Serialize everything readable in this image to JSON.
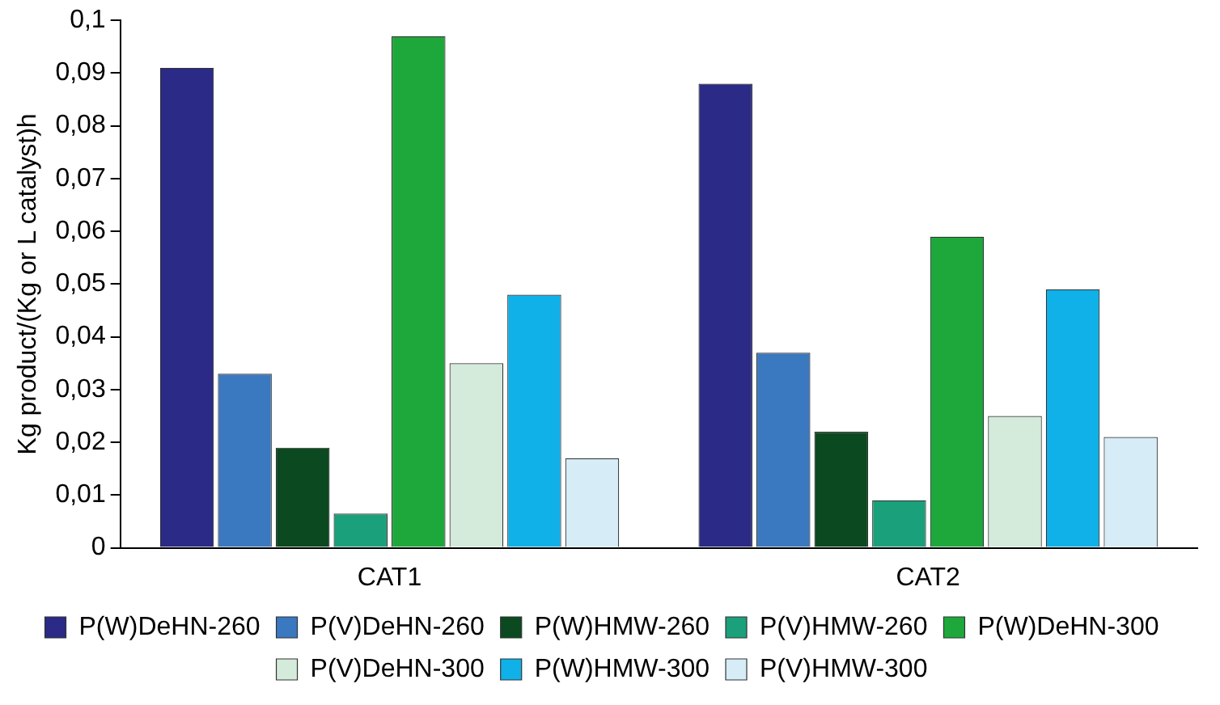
{
  "chart_data": {
    "type": "bar",
    "ylabel": "Kg product/(Kg or L catalyst)h",
    "categories": [
      "CAT1",
      "CAT2"
    ],
    "series": [
      {
        "name": "P(W)DeHN-260",
        "color": "#2b2a86",
        "values": [
          0.091,
          0.088
        ]
      },
      {
        "name": "P(V)DeHN-260",
        "color": "#3a78c0",
        "values": [
          0.033,
          0.037
        ]
      },
      {
        "name": "P(W)HMW-260",
        "color": "#0b4a20",
        "values": [
          0.019,
          0.022
        ]
      },
      {
        "name": "P(V)HMW-260",
        "color": "#1aa07a",
        "values": [
          0.0065,
          0.009
        ]
      },
      {
        "name": "P(W)DeHN-300",
        "color": "#1ea83c",
        "values": [
          0.097,
          0.059
        ]
      },
      {
        "name": "P(V)DeHN-300",
        "color": "#d4eadb",
        "values": [
          0.035,
          0.025
        ]
      },
      {
        "name": "P(W)HMW-300",
        "color": "#10b0e8",
        "values": [
          0.048,
          0.049
        ]
      },
      {
        "name": "P(V)HMW-300",
        "color": "#d6ecf6",
        "values": [
          0.017,
          0.021
        ]
      }
    ],
    "ylim": [
      0,
      0.1
    ],
    "yticks": [
      0,
      {
        "value": 0.01,
        "label": "0,01"
      },
      {
        "value": 0.02,
        "label": "0,02"
      },
      {
        "value": 0.03,
        "label": "0,03"
      },
      {
        "value": 0.04,
        "label": "0,04"
      },
      {
        "value": 0.05,
        "label": "0,05"
      },
      {
        "value": 0.06,
        "label": "0,06"
      },
      {
        "value": 0.07,
        "label": "0,07"
      },
      {
        "value": 0.08,
        "label": "0,08"
      },
      {
        "value": 0.09,
        "label": "0,09"
      },
      {
        "value": 0.1,
        "label": "0,1"
      }
    ],
    "grid": false,
    "legend": "bottom"
  }
}
